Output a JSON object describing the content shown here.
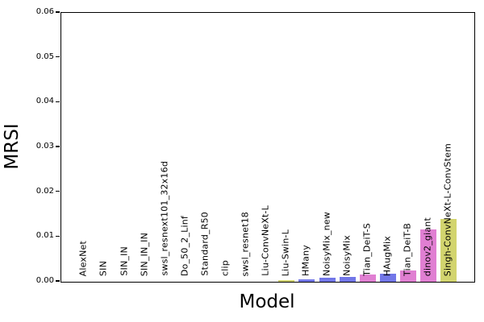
{
  "chart_data": {
    "type": "bar",
    "title": "",
    "xlabel": "Model",
    "ylabel": "MRSI",
    "ylim": [
      0,
      0.06
    ],
    "y_ticks": [
      "0.00",
      "0.01",
      "0.02",
      "0.03",
      "0.04",
      "0.05",
      "0.06"
    ],
    "y_tick_values": [
      0,
      0.01,
      0.02,
      0.03,
      0.04,
      0.05,
      0.06
    ],
    "grid": false,
    "legend": "none",
    "bar_label_placement": "vertical-inside-above-axis",
    "categories": [
      "AlexNet",
      "SIN",
      "SIN_IN",
      "SIN_IN_IN",
      "swsl_resnext101_32x16d",
      "Do_50_2_Linf",
      "Standard_R50",
      "clip",
      "swsl_resnet18",
      "Liu-ConvNeXt-L",
      "Liu-Swin-L",
      "HMany",
      "NoisyMix_new",
      "NoisyMix",
      "Tian_DeiT-S",
      "HAugMix",
      "Tian_DeiT-B",
      "dinov2_giant",
      "Singh-ConvNeXt-L-ConvStem"
    ],
    "values": [
      0,
      0,
      0,
      0,
      0,
      0,
      0,
      0,
      0,
      0,
      0.0003,
      0.0006,
      0.0009,
      0.001,
      0.0016,
      0.0018,
      0.0025,
      0.0117,
      0.014
    ],
    "bar_colors": [
      "#bbbbbb",
      "#bbbbbb",
      "#bbbbbb",
      "#bbbbbb",
      "#bbbbbb",
      "#bbbbbb",
      "#bbbbbb",
      "#bbbbbb",
      "#bbbbbb",
      "#bbbbbb",
      "#d2d46e",
      "#7277e8",
      "#7277e8",
      "#7277e8",
      "#e07fd2",
      "#7277e8",
      "#e07fd2",
      "#e07fd2",
      "#d2d46e"
    ]
  },
  "palette": {
    "periwinkle_blue": "#7277e8",
    "orchid_pink": "#e07fd2",
    "khaki_yellow": "#d2d46e",
    "axis_black": "#000000",
    "background": "#ffffff"
  }
}
